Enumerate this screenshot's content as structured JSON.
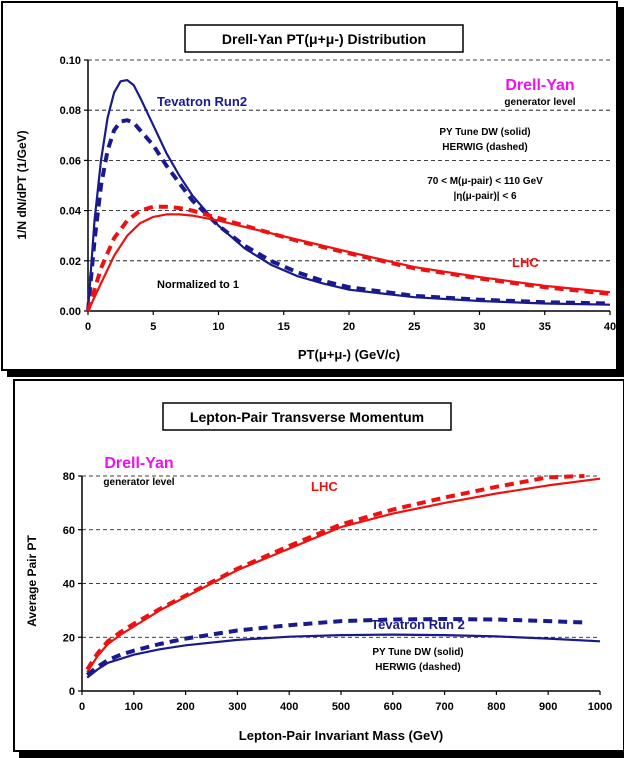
{
  "colors": {
    "tevatron": "#1a1a8c",
    "lhc": "#ee1111",
    "drell_yan": "#ee11ee",
    "text": "#000000"
  },
  "chart_data": [
    {
      "type": "line",
      "title": "Drell-Yan PT(μ+μ-) Distribution",
      "xlabel": "PT(μ+μ-)  (GeV/c)",
      "ylabel": "1/N dN/dPT (1/GeV)",
      "xlim": [
        0,
        40
      ],
      "ylim": [
        0,
        0.1
      ],
      "x_ticks": [
        "0",
        "5",
        "10",
        "15",
        "20",
        "25",
        "30",
        "35",
        "40"
      ],
      "y_ticks": [
        "0.00",
        "0.02",
        "0.04",
        "0.06",
        "0.08",
        "0.10"
      ],
      "grid": "horizontal dashed",
      "annotations": {
        "heading": "Drell-Yan",
        "subheading": "generator level",
        "tune_solid": "PY Tune DW (solid)",
        "tune_dashed": "HERWIG (dashed)",
        "mass_cut": "70 < M(μ-pair) < 110 GeV",
        "eta_cut": "|η(μ-pair)| < 6",
        "normalized": "Normalized to 1",
        "tevatron_label": "Tevatron Run2",
        "lhc_label": "LHC"
      },
      "series": [
        {
          "name": "Tevatron Run2",
          "style": "solid",
          "color": "#1a1a8c",
          "x": [
            0,
            0.5,
            1,
            1.5,
            2,
            2.5,
            3,
            3.5,
            4,
            5,
            6,
            7,
            8,
            10,
            12,
            14,
            16,
            18,
            20,
            25,
            30,
            35,
            40
          ],
          "y": [
            0.0,
            0.036,
            0.06,
            0.077,
            0.087,
            0.0915,
            0.092,
            0.09,
            0.085,
            0.074,
            0.063,
            0.054,
            0.046,
            0.034,
            0.025,
            0.0185,
            0.014,
            0.011,
            0.0085,
            0.0055,
            0.004,
            0.003,
            0.0025
          ]
        },
        {
          "name": "",
          "style": "dashed",
          "color": "#1a1a8c",
          "x": [
            0,
            0.5,
            1,
            1.5,
            2,
            2.5,
            3,
            3.5,
            4,
            5,
            6,
            7,
            8,
            10,
            12,
            14,
            16,
            18,
            20,
            25,
            30,
            35,
            40
          ],
          "y": [
            0.0,
            0.028,
            0.05,
            0.064,
            0.072,
            0.0755,
            0.076,
            0.075,
            0.072,
            0.066,
            0.058,
            0.051,
            0.044,
            0.034,
            0.026,
            0.02,
            0.0155,
            0.012,
            0.0095,
            0.006,
            0.0045,
            0.0035,
            0.003
          ]
        },
        {
          "name": "LHC",
          "style": "solid",
          "color": "#ee1111",
          "x": [
            0,
            1,
            2,
            3,
            4,
            5,
            6,
            7,
            8,
            10,
            12,
            14,
            16,
            18,
            20,
            25,
            30,
            35,
            40
          ],
          "y": [
            0.0,
            0.011,
            0.022,
            0.03,
            0.035,
            0.0375,
            0.0385,
            0.0385,
            0.038,
            0.036,
            0.0335,
            0.031,
            0.0285,
            0.026,
            0.0235,
            0.0175,
            0.0135,
            0.01,
            0.0075
          ]
        },
        {
          "name": "",
          "style": "dashed",
          "color": "#ee1111",
          "x": [
            0,
            1,
            2,
            3,
            4,
            5,
            6,
            7,
            8,
            10,
            12,
            14,
            16,
            18,
            20,
            25,
            30,
            35,
            40
          ],
          "y": [
            0.0,
            0.017,
            0.029,
            0.036,
            0.04,
            0.0415,
            0.0415,
            0.041,
            0.04,
            0.037,
            0.034,
            0.031,
            0.028,
            0.0255,
            0.023,
            0.017,
            0.013,
            0.0095,
            0.0068
          ]
        }
      ]
    },
    {
      "type": "line",
      "title": "Lepton-Pair Transverse Momentum",
      "xlabel": "Lepton-Pair Invariant Mass  (GeV)",
      "ylabel": "Average Pair PT",
      "xlim": [
        0,
        1000
      ],
      "ylim": [
        0,
        80
      ],
      "x_ticks": [
        "0",
        "100",
        "200",
        "300",
        "400",
        "500",
        "600",
        "700",
        "800",
        "900",
        "1000"
      ],
      "y_ticks": [
        "0",
        "20",
        "40",
        "60",
        "80"
      ],
      "grid": "horizontal dashed",
      "annotations": {
        "heading": "Drell-Yan",
        "subheading": "generator level",
        "tune_solid": "PY Tune DW (solid)",
        "tune_dashed": "HERWIG (dashed)",
        "tevatron_label": "Tevatron Run 2",
        "lhc_label": "LHC"
      },
      "series": [
        {
          "name": "LHC",
          "style": "solid",
          "color": "#ee1111",
          "x": [
            10,
            30,
            50,
            75,
            100,
            150,
            200,
            250,
            300,
            400,
            500,
            600,
            700,
            800,
            900,
            1000
          ],
          "y": [
            7,
            13,
            17.5,
            21,
            24,
            30,
            35,
            40,
            45,
            53,
            61,
            66,
            70,
            73.5,
            76.5,
            79
          ]
        },
        {
          "name": "",
          "style": "dashed",
          "color": "#ee1111",
          "x": [
            10,
            30,
            50,
            75,
            100,
            150,
            200,
            250,
            300,
            400,
            500,
            600,
            700,
            800,
            900,
            970
          ],
          "y": [
            8,
            14,
            18.5,
            22,
            25,
            30.5,
            35.5,
            40.5,
            45.5,
            54,
            62,
            67.5,
            72,
            76,
            79.5,
            81.5
          ]
        },
        {
          "name": "Tevatron Run 2",
          "style": "solid",
          "color": "#1a1a8c",
          "x": [
            10,
            30,
            50,
            75,
            100,
            150,
            200,
            300,
            400,
            500,
            600,
            700,
            800,
            900,
            1000
          ],
          "y": [
            5,
            8,
            10.5,
            12,
            13.5,
            15.5,
            17,
            19,
            20.2,
            20.8,
            21,
            20.8,
            20.3,
            19.5,
            18.5
          ]
        },
        {
          "name": "",
          "style": "dashed",
          "color": "#1a1a8c",
          "x": [
            10,
            30,
            50,
            75,
            100,
            150,
            200,
            300,
            400,
            500,
            600,
            700,
            800,
            900,
            970
          ],
          "y": [
            6,
            9,
            11.5,
            13.5,
            15,
            17.5,
            19.5,
            22.5,
            24.5,
            26,
            26.6,
            26.8,
            26.6,
            26,
            25.5
          ]
        }
      ]
    }
  ]
}
